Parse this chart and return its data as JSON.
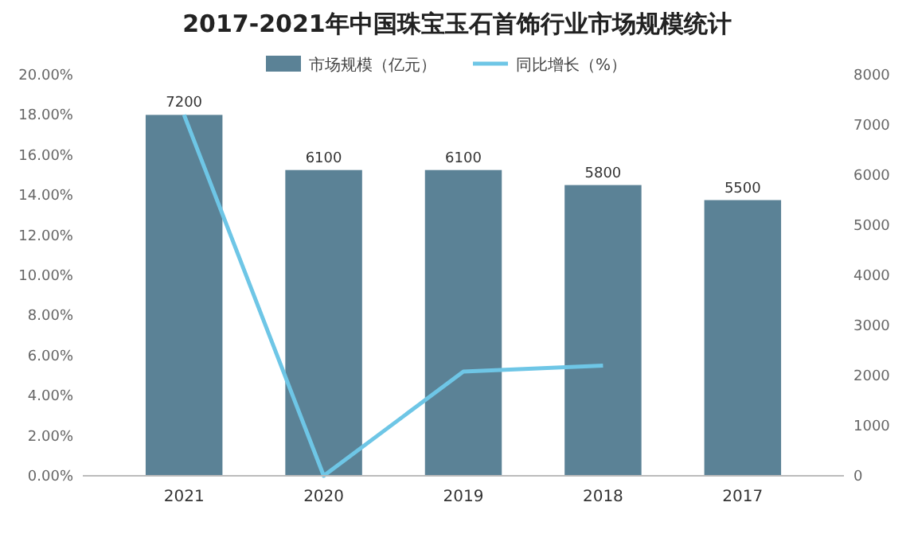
{
  "chart_data": {
    "type": "bar",
    "title": "2017-2021年中国珠宝玉石首饰行业市场规模统计",
    "categories": [
      "2021",
      "2020",
      "2019",
      "2018",
      "2017"
    ],
    "series": [
      {
        "name": "市场规模（亿元）",
        "axis": "y2",
        "color": "#5b8296",
        "values": [
          7200,
          6100,
          6100,
          5800,
          5500
        ],
        "value_labels": [
          "7200",
          "6100",
          "6100",
          "5800",
          "5500"
        ]
      },
      {
        "name": "同比增长（%）",
        "type": "line",
        "axis": "y",
        "color": "#6ec6e6",
        "values": [
          18,
          0,
          5.2,
          5.5,
          null
        ]
      }
    ],
    "ylim": [
      0,
      20
    ],
    "yticks": [
      {
        "value": 0,
        "label": "0.00%"
      },
      {
        "value": 2,
        "label": "2.00%"
      },
      {
        "value": 4,
        "label": "4.00%"
      },
      {
        "value": 6,
        "label": "6.00%"
      },
      {
        "value": 8,
        "label": "8.00%"
      },
      {
        "value": 10,
        "label": "10.00%"
      },
      {
        "value": 12,
        "label": "12.00%"
      },
      {
        "value": 14,
        "label": "14.00%"
      },
      {
        "value": 16,
        "label": "16.00%"
      },
      {
        "value": 18,
        "label": "18.00%"
      },
      {
        "value": 20,
        "label": "20.00%"
      }
    ],
    "y2lim": [
      0,
      8000
    ],
    "y2ticks": [
      0,
      1000,
      2000,
      3000,
      4000,
      5000,
      6000,
      7000,
      8000
    ],
    "legend": "top"
  }
}
